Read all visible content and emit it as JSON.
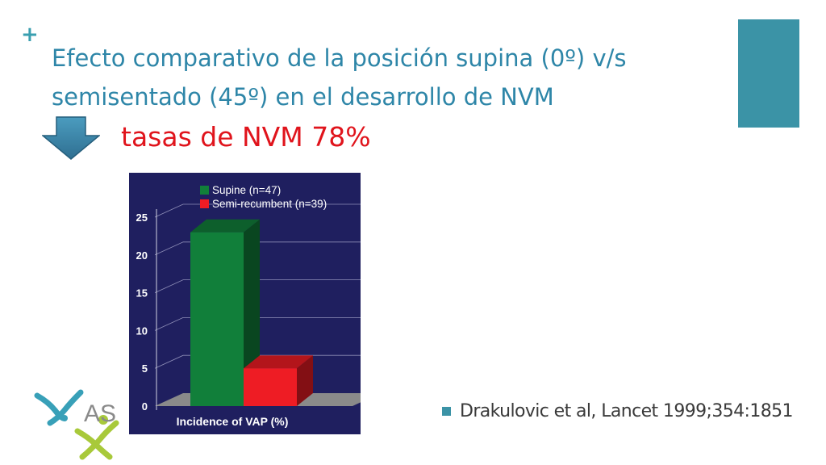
{
  "slide": {
    "title": "Efecto comparativo de la posición supina (0º) v/s semisentado (45º) en el desarrollo de NVM",
    "highlight": "tasas de NVM 78%",
    "citation": "Drakulovic et al, Lancet 1999;354:1851",
    "logo_text": "AS"
  },
  "icons": {
    "plus": "plus-icon",
    "arrow": "down-arrow-icon",
    "bullet": "square-bullet-icon"
  },
  "colors": {
    "title": "#2e86a8",
    "highlight": "#e0141c",
    "accent": "#3b93a6",
    "chart_background": "#1f1f5f",
    "supine": "#117f3a",
    "semi_recumbent": "#ee1c24"
  },
  "chart_data": {
    "type": "bar",
    "xlabel": "Incidence of VAP (%)",
    "ylabel": "",
    "ylim": [
      0,
      25
    ],
    "yticks": [
      0,
      5,
      10,
      15,
      20,
      25
    ],
    "grid": true,
    "legend_position": "top",
    "series": [
      {
        "name": "Supine (n=47)",
        "values": [
          23
        ]
      },
      {
        "name": "Semi-recumbent (n=39)",
        "values": [
          5
        ]
      }
    ]
  }
}
